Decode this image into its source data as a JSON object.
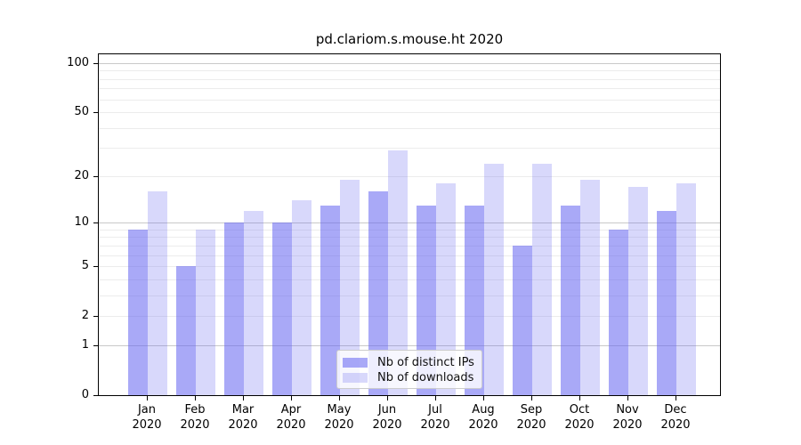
{
  "chart_data": {
    "type": "bar",
    "title": "pd.clariom.s.mouse.ht 2020",
    "x_year": "2020",
    "categories": [
      "Jan",
      "Feb",
      "Mar",
      "Apr",
      "May",
      "Jun",
      "Jul",
      "Aug",
      "Sep",
      "Oct",
      "Nov",
      "Dec"
    ],
    "series": [
      {
        "name": "Nb of distinct IPs",
        "key": "distinct-ips",
        "values": [
          9,
          5,
          10,
          10,
          13,
          16,
          13,
          13,
          7,
          13,
          9,
          12
        ],
        "color": "rgba(99,99,240,0.55)"
      },
      {
        "name": "Nb of downloads",
        "key": "downloads",
        "values": [
          16,
          9,
          12,
          14,
          19,
          29,
          18,
          24,
          24,
          19,
          17,
          18
        ],
        "color": "rgba(99,99,240,0.25)"
      }
    ],
    "yticks": [
      0,
      1,
      2,
      5,
      10,
      20,
      50,
      100
    ],
    "ylim": [
      0,
      100
    ],
    "yscale": "log1p",
    "grid": "horizontal",
    "grid_minor_values": [
      2,
      3,
      4,
      5,
      6,
      7,
      8,
      9,
      20,
      30,
      40,
      50,
      60,
      70,
      80,
      90
    ],
    "grid_major_values": [
      1,
      10,
      100
    ],
    "legend_position": "lower-center-inside",
    "colors": {
      "bar_base": "#6363f0",
      "grid_minor": "#ececec",
      "grid_major": "#c9c9c9",
      "axis": "#000000",
      "legend_border": "#cccccc"
    }
  }
}
